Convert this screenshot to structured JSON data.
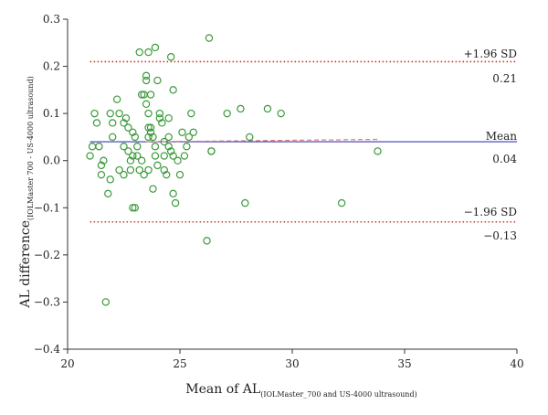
{
  "chart_data": {
    "type": "scatter",
    "xlabel": "Mean of AL",
    "xlabel_sub": "(IOLMaster_700 and US-4000 ultrasound)",
    "ylabel": "AL difference",
    "ylabel_sub": "(IOLMaster 700 - US-4000 ultrasound)",
    "xlim": [
      20,
      40
    ],
    "ylim": [
      -0.4,
      0.3
    ],
    "x_ticks": [
      20,
      25,
      30,
      35,
      40
    ],
    "y_ticks": [
      -0.4,
      -0.3,
      -0.2,
      -0.1,
      0.0,
      0.1,
      0.2,
      0.3
    ],
    "x_tick_labels": [
      "20",
      "25",
      "30",
      "35",
      "40"
    ],
    "y_tick_labels": [
      "−0.4",
      "−0.3",
      "−0.2",
      "−0.1",
      "0.0",
      "0.1",
      "0.2",
      "0.3"
    ],
    "reference_lines": {
      "upper": {
        "label": "+1.96 SD",
        "value_label": "0.21",
        "value": 0.21,
        "color": "#c0392b",
        "style": "dotted"
      },
      "mean": {
        "label": "Mean",
        "value_label": "0.04",
        "value": 0.04,
        "color": "#3b3bb3",
        "style": "solid"
      },
      "lower": {
        "label": "−1.96 SD",
        "value_label": "−0.13",
        "value": -0.13,
        "color": "#c0392b",
        "style": "dotted"
      }
    },
    "regression_line": {
      "x": [
        23.5,
        33.8
      ],
      "y": [
        0.04,
        0.045
      ],
      "color": "#e07a7a",
      "style": "dashed"
    },
    "marker_color": "#3a9a3a",
    "points": [
      [
        21.7,
        -0.3
      ],
      [
        22.0,
        0.08
      ],
      [
        23.2,
        0.23
      ],
      [
        23.6,
        0.23
      ],
      [
        23.9,
        0.24
      ],
      [
        24.6,
        0.22
      ],
      [
        26.3,
        0.26
      ],
      [
        21.1,
        0.03
      ],
      [
        21.2,
        0.1
      ],
      [
        21.3,
        0.08
      ],
      [
        21.0,
        0.01
      ],
      [
        21.4,
        0.03
      ],
      [
        21.6,
        0.0
      ],
      [
        21.5,
        -0.01
      ],
      [
        21.5,
        -0.03
      ],
      [
        21.8,
        -0.07
      ],
      [
        21.9,
        -0.04
      ],
      [
        22.0,
        0.05
      ],
      [
        21.9,
        0.1
      ],
      [
        22.2,
        0.13
      ],
      [
        22.3,
        0.1
      ],
      [
        22.3,
        -0.02
      ],
      [
        22.5,
        0.08
      ],
      [
        22.5,
        0.03
      ],
      [
        22.6,
        0.09
      ],
      [
        22.5,
        -0.03
      ],
      [
        22.7,
        0.07
      ],
      [
        22.7,
        0.02
      ],
      [
        22.8,
        0.0
      ],
      [
        22.8,
        -0.02
      ],
      [
        22.9,
        0.06
      ],
      [
        22.9,
        0.01
      ],
      [
        23.0,
        0.05
      ],
      [
        23.0,
        -0.1
      ],
      [
        22.9,
        -0.1
      ],
      [
        23.1,
        0.03
      ],
      [
        23.1,
        0.01
      ],
      [
        23.2,
        -0.02
      ],
      [
        23.3,
        0.14
      ],
      [
        23.3,
        0.0
      ],
      [
        23.4,
        0.14
      ],
      [
        23.4,
        -0.03
      ],
      [
        23.5,
        0.18
      ],
      [
        23.5,
        0.17
      ],
      [
        23.5,
        0.12
      ],
      [
        23.6,
        0.1
      ],
      [
        23.6,
        0.07
      ],
      [
        23.6,
        0.05
      ],
      [
        23.6,
        -0.02
      ],
      [
        23.7,
        0.14
      ],
      [
        23.7,
        0.07
      ],
      [
        23.7,
        0.06
      ],
      [
        23.8,
        0.05
      ],
      [
        23.8,
        -0.06
      ],
      [
        23.9,
        0.03
      ],
      [
        23.9,
        0.01
      ],
      [
        24.0,
        0.17
      ],
      [
        24.0,
        -0.01
      ],
      [
        24.1,
        0.1
      ],
      [
        24.1,
        0.09
      ],
      [
        24.2,
        0.08
      ],
      [
        24.3,
        0.04
      ],
      [
        24.3,
        0.01
      ],
      [
        24.3,
        -0.02
      ],
      [
        24.4,
        -0.03
      ],
      [
        24.5,
        0.09
      ],
      [
        24.5,
        0.05
      ],
      [
        24.5,
        0.03
      ],
      [
        24.6,
        0.02
      ],
      [
        24.7,
        0.15
      ],
      [
        24.7,
        0.01
      ],
      [
        24.7,
        -0.07
      ],
      [
        24.8,
        -0.09
      ],
      [
        24.9,
        0.0
      ],
      [
        25.0,
        -0.03
      ],
      [
        25.1,
        0.06
      ],
      [
        25.2,
        0.01
      ],
      [
        25.3,
        0.03
      ],
      [
        25.4,
        0.05
      ],
      [
        25.5,
        0.1
      ],
      [
        25.6,
        0.06
      ],
      [
        26.2,
        -0.17
      ],
      [
        26.4,
        0.02
      ],
      [
        26.4,
        0.02
      ],
      [
        27.1,
        0.1
      ],
      [
        27.7,
        0.11
      ],
      [
        27.9,
        -0.09
      ],
      [
        28.1,
        0.05
      ],
      [
        28.9,
        0.11
      ],
      [
        29.5,
        0.1
      ],
      [
        32.2,
        -0.09
      ],
      [
        33.8,
        0.02
      ]
    ]
  }
}
